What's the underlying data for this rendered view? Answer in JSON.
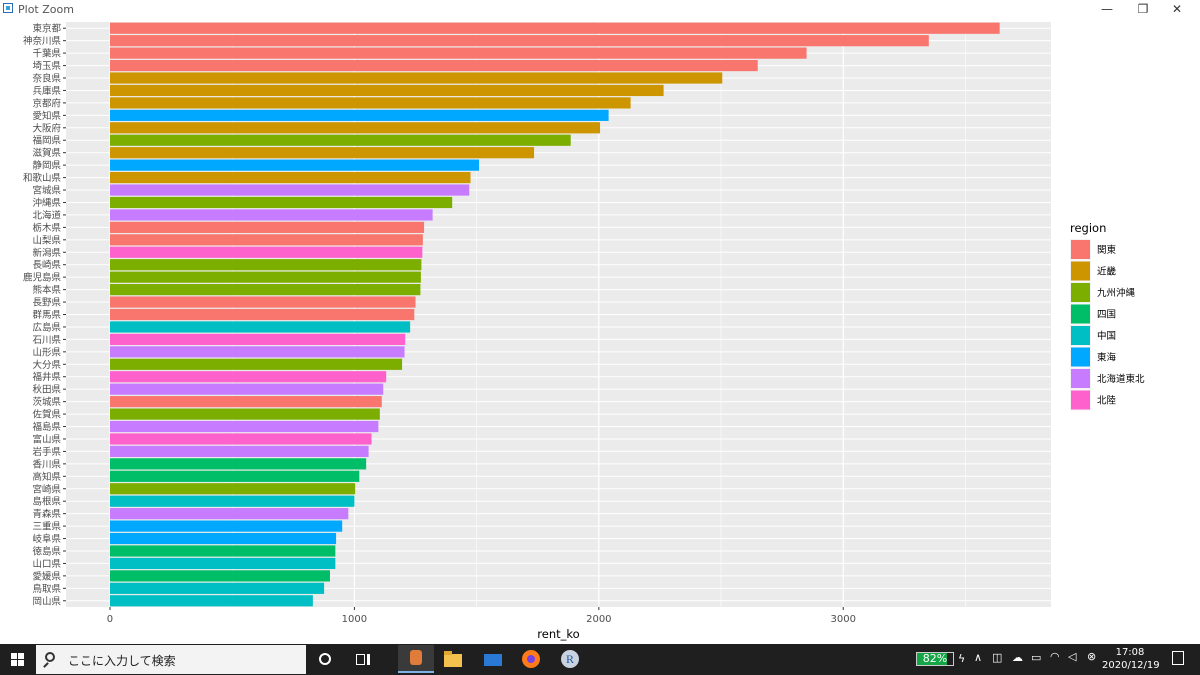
{
  "window": {
    "title": "Plot Zoom",
    "minimize": "—",
    "restore": "❐",
    "close": "✕"
  },
  "chart_data": {
    "type": "bar",
    "orientation": "horizontal",
    "xlabel": "rent_ko",
    "ylabel": "",
    "xlim": [
      -180,
      3850
    ],
    "x_ticks": [
      0,
      1000,
      2000,
      3000
    ],
    "grid": true,
    "legend": {
      "title": "region",
      "position": "right",
      "entries": [
        {
          "name": "関東",
          "color": "#F8766D"
        },
        {
          "name": "近畿",
          "color": "#CD9600"
        },
        {
          "name": "九州沖縄",
          "color": "#7CAE00"
        },
        {
          "name": "四国",
          "color": "#00BE67"
        },
        {
          "name": "中国",
          "color": "#00BFC4"
        },
        {
          "name": "東海",
          "color": "#00A9FF"
        },
        {
          "name": "北海道東北",
          "color": "#C77CFF"
        },
        {
          "name": "北陸",
          "color": "#FF61CC"
        }
      ]
    },
    "categories": [
      "東京都",
      "神奈川県",
      "千葉県",
      "埼玉県",
      "奈良県",
      "兵庫県",
      "京都府",
      "愛知県",
      "大阪府",
      "福岡県",
      "滋賀県",
      "静岡県",
      "和歌山県",
      "宮城県",
      "沖縄県",
      "北海道",
      "栃木県",
      "山梨県",
      "新潟県",
      "長崎県",
      "鹿児島県",
      "熊本県",
      "長野県",
      "群馬県",
      "広島県",
      "石川県",
      "山形県",
      "大分県",
      "福井県",
      "秋田県",
      "茨城県",
      "佐賀県",
      "福島県",
      "富山県",
      "岩手県",
      "香川県",
      "高知県",
      "宮崎県",
      "島根県",
      "青森県",
      "三重県",
      "岐阜県",
      "徳島県",
      "山口県",
      "愛媛県",
      "鳥取県",
      "岡山県"
    ],
    "values": [
      3640,
      3350,
      2850,
      2650,
      2505,
      2265,
      2130,
      2040,
      2005,
      1885,
      1735,
      1510,
      1475,
      1470,
      1400,
      1320,
      1285,
      1280,
      1278,
      1274,
      1272,
      1270,
      1250,
      1245,
      1228,
      1208,
      1205,
      1195,
      1130,
      1118,
      1112,
      1104,
      1098,
      1070,
      1058,
      1048,
      1020,
      1003,
      1000,
      975,
      950,
      925,
      922,
      922,
      900,
      876,
      830
    ],
    "regions": [
      "関東",
      "関東",
      "関東",
      "関東",
      "近畿",
      "近畿",
      "近畿",
      "東海",
      "近畿",
      "九州沖縄",
      "近畿",
      "東海",
      "近畿",
      "北海道東北",
      "九州沖縄",
      "北海道東北",
      "関東",
      "関東",
      "北陸",
      "九州沖縄",
      "九州沖縄",
      "九州沖縄",
      "関東",
      "関東",
      "中国",
      "北陸",
      "北海道東北",
      "九州沖縄",
      "北陸",
      "北海道東北",
      "関東",
      "九州沖縄",
      "北海道東北",
      "北陸",
      "北海道東北",
      "四国",
      "四国",
      "九州沖縄",
      "中国",
      "北海道東北",
      "東海",
      "東海",
      "四国",
      "中国",
      "四国",
      "中国",
      "中国"
    ]
  },
  "taskbar": {
    "search_placeholder": "ここに入力して検索",
    "battery": "82%",
    "time": "17:08",
    "date": "2020/12/19"
  }
}
